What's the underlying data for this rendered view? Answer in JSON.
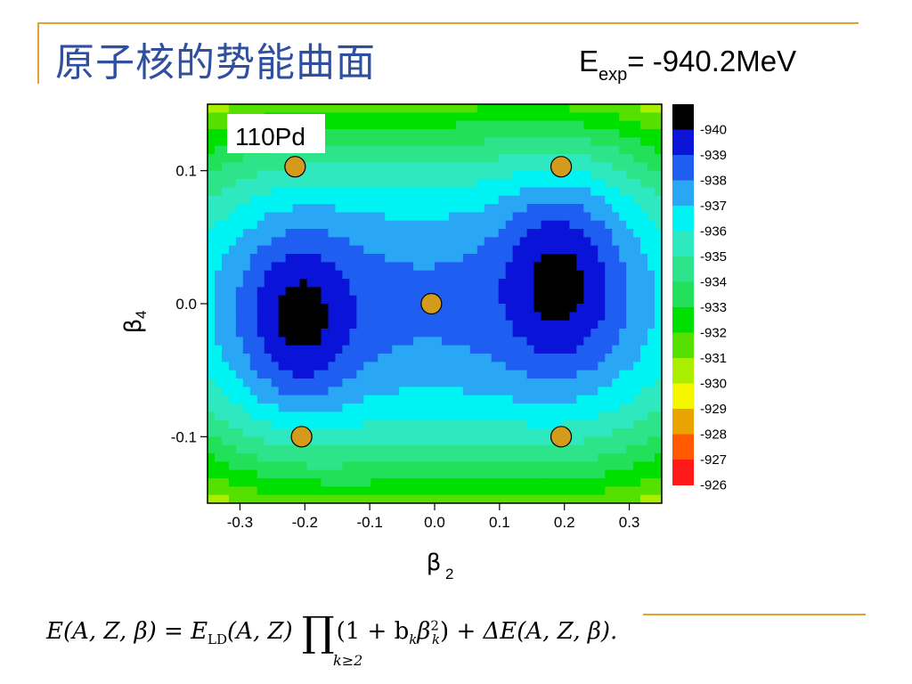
{
  "slide": {
    "title": "原子核的势能曲面",
    "energy_label": {
      "symbol": "E",
      "subscript": "exp",
      "rest": "= -940.2MeV"
    },
    "formula": {
      "text": "E(A, Z, β) = E_LD(A, Z) ∏_{k≥2} (1 + b_k β_k^2) + ΔE(A, Z, β).",
      "lhs": "E(A, Z, β) = ",
      "e_ld": "E",
      "ld_sub": "LD",
      "args": "(A, Z)",
      "prod_symbol": "∏",
      "prod_under": "k≥2",
      "factor_open": "(1 + b",
      "k_sub": "k",
      "beta": "β",
      "beta_sup": "2",
      "factor_close": ")",
      "delta": " + ΔE(A, Z, β)."
    },
    "accent_color": "#e0a331",
    "title_color": "#2f4f9f"
  },
  "chart_data": {
    "type": "contour",
    "nucleus_label": "110Pd",
    "xlabel": "β",
    "xlabel_sub": "2",
    "ylabel": "β",
    "ylabel_sub": "4",
    "xlim": [
      -0.35,
      0.35
    ],
    "ylim": [
      -0.15,
      0.15
    ],
    "x_ticks": [
      -0.3,
      -0.2,
      -0.1,
      0.0,
      0.1,
      0.2,
      0.3
    ],
    "x_tick_labels": [
      "-0.3",
      "-0.2",
      "-0.1",
      "0.0",
      "0.1",
      "0.2",
      "0.3"
    ],
    "y_ticks": [
      0.1,
      0.0,
      -0.1
    ],
    "y_tick_labels": [
      "0.1",
      "0.0",
      "-0.1"
    ],
    "colorbar": {
      "levels": [
        -940,
        -939,
        -938,
        -937,
        -936,
        -935,
        -934,
        -933,
        -932,
        -931,
        -930,
        -929,
        -928,
        -927,
        -926
      ],
      "labels": [
        "-940",
        "-939",
        "-938",
        "-937",
        "-936",
        "-935",
        "-934",
        "-933",
        "-932",
        "-931",
        "-930",
        "-929",
        "-928",
        "-927",
        "-926"
      ],
      "colors": [
        "#000000",
        "#0a13d8",
        "#1e5ef0",
        "#29a6f4",
        "#00f3f3",
        "#2ee8c0",
        "#2ee48a",
        "#22e05a",
        "#00e000",
        "#55e000",
        "#aaee00",
        "#f6f600",
        "#e8a400",
        "#ff5a00",
        "#ff1a1a"
      ]
    },
    "minima": [
      {
        "x": -0.21,
        "y": -0.015,
        "value": -939.4
      },
      {
        "x": 0.195,
        "y": 0.025,
        "value": -939.4
      }
    ],
    "markers": [
      {
        "x": -0.215,
        "y": 0.103
      },
      {
        "x": 0.195,
        "y": 0.103
      },
      {
        "x": -0.005,
        "y": 0.0
      },
      {
        "x": -0.205,
        "y": -0.1
      },
      {
        "x": 0.195,
        "y": -0.1
      }
    ],
    "marker_color": "#d49a1c"
  }
}
